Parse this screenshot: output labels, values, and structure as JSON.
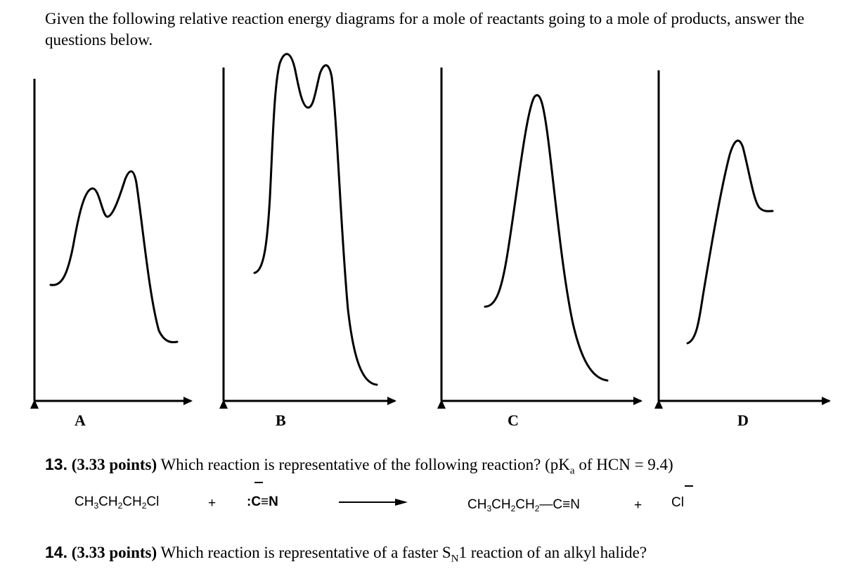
{
  "intro": "Given the following relative reaction energy diagrams for a mole of reactants going to a mole of products, answer the questions below.",
  "diagrams": [
    {
      "label": "A",
      "description": "two-step reaction, two transition states, products lower than reactants"
    },
    {
      "label": "B",
      "description": "two-step reaction, very high energy barriers, products much lower than reactants"
    },
    {
      "label": "C",
      "description": "one-step reaction, single high transition state, products lower than reactants"
    },
    {
      "label": "D",
      "description": "one-step reaction, products higher than reactants (endothermic)"
    }
  ],
  "q13": {
    "number": "13.",
    "points": "(3.33 points)",
    "text_before": " Which reaction is representative of the following reaction? (pK",
    "sub": "a",
    "text_after": " of HCN = 9.4)"
  },
  "equation": {
    "reactant1_parts": [
      "CH",
      "3",
      "CH",
      "2",
      "CH",
      "2",
      "Cl"
    ],
    "plus1": "+",
    "reactant2": ":C≡N",
    "product1_parts": [
      "CH",
      "3",
      "CH",
      "2",
      "CH",
      "2",
      "—C≡N"
    ],
    "plus2": "+",
    "product2": "Cl"
  },
  "q14": {
    "number": "14.",
    "points": "(3.33 points)",
    "text_before": " Which reaction is representative of a faster S",
    "sub": "N",
    "text_after": "1 reaction of an alkyl halide?"
  }
}
